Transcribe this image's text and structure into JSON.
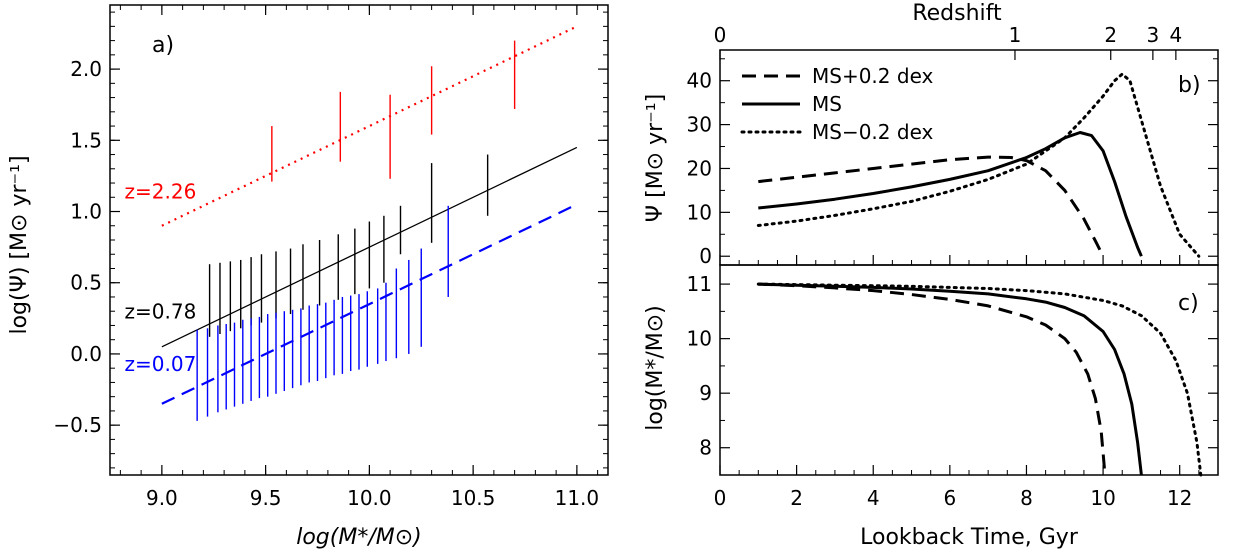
{
  "chart_data": [
    {
      "panel": "a)",
      "type": "line",
      "xlabel": "log(M*/M⊙)",
      "ylabel": "log(Ψ)  [M⊙ yr⁻¹]",
      "xlim": [
        8.75,
        11.15
      ],
      "ylim": [
        -0.85,
        2.45
      ],
      "xticks": [
        "9.0",
        "9.5",
        "10.0",
        "10.5",
        "11.0"
      ],
      "yticks": [
        "−0.5",
        "0.0",
        "0.5",
        "1.0",
        "1.5",
        "2.0"
      ],
      "grid": false,
      "series": [
        {
          "name": "z=2.26",
          "color": "#ff0000",
          "style": "dotted",
          "line": {
            "x": [
              9.0,
              11.0
            ],
            "y": [
              0.9,
              2.3
            ]
          },
          "errorbars": [
            {
              "x": 9.53,
              "lo": 1.21,
              "hi": 1.6
            },
            {
              "x": 9.86,
              "lo": 1.35,
              "hi": 1.84
            },
            {
              "x": 10.1,
              "lo": 1.23,
              "hi": 1.82
            },
            {
              "x": 10.3,
              "lo": 1.54,
              "hi": 2.02
            },
            {
              "x": 10.7,
              "lo": 1.72,
              "hi": 2.2
            }
          ]
        },
        {
          "name": "z=0.78",
          "color": "#000000",
          "style": "solid",
          "line": {
            "x": [
              9.0,
              11.0
            ],
            "y": [
              0.05,
              1.45
            ]
          },
          "errorbars": [
            {
              "x": 9.23,
              "lo": 0.12,
              "hi": 0.63
            },
            {
              "x": 9.28,
              "lo": 0.14,
              "hi": 0.64
            },
            {
              "x": 9.33,
              "lo": 0.16,
              "hi": 0.65
            },
            {
              "x": 9.38,
              "lo": 0.18,
              "hi": 0.66
            },
            {
              "x": 9.43,
              "lo": 0.2,
              "hi": 0.68
            },
            {
              "x": 9.48,
              "lo": 0.22,
              "hi": 0.7
            },
            {
              "x": 9.55,
              "lo": 0.25,
              "hi": 0.72
            },
            {
              "x": 9.62,
              "lo": 0.28,
              "hi": 0.74
            },
            {
              "x": 9.68,
              "lo": 0.31,
              "hi": 0.77
            },
            {
              "x": 9.76,
              "lo": 0.34,
              "hi": 0.8
            },
            {
              "x": 9.85,
              "lo": 0.38,
              "hi": 0.84
            },
            {
              "x": 9.93,
              "lo": 0.42,
              "hi": 0.88
            },
            {
              "x": 10.0,
              "lo": 0.46,
              "hi": 0.93
            },
            {
              "x": 10.07,
              "lo": 0.5,
              "hi": 0.97
            },
            {
              "x": 10.15,
              "lo": 0.7,
              "hi": 1.04
            },
            {
              "x": 10.3,
              "lo": 0.78,
              "hi": 1.34
            },
            {
              "x": 10.57,
              "lo": 0.97,
              "hi": 1.4
            }
          ]
        },
        {
          "name": "z=0.07",
          "color": "#0000ff",
          "style": "dashed",
          "line": {
            "x": [
              9.0,
              11.0
            ],
            "y": [
              -0.35,
              1.05
            ]
          },
          "errorbars": [
            {
              "x": 9.17,
              "lo": -0.47,
              "hi": 0.17
            },
            {
              "x": 9.22,
              "lo": -0.44,
              "hi": 0.18
            },
            {
              "x": 9.27,
              "lo": -0.41,
              "hi": 0.2
            },
            {
              "x": 9.31,
              "lo": -0.39,
              "hi": 0.21
            },
            {
              "x": 9.35,
              "lo": -0.37,
              "hi": 0.22
            },
            {
              "x": 9.39,
              "lo": -0.35,
              "hi": 0.24
            },
            {
              "x": 9.43,
              "lo": -0.33,
              "hi": 0.25
            },
            {
              "x": 9.47,
              "lo": -0.31,
              "hi": 0.26
            },
            {
              "x": 9.51,
              "lo": -0.3,
              "hi": 0.28
            },
            {
              "x": 9.55,
              "lo": -0.28,
              "hi": 0.29
            },
            {
              "x": 9.59,
              "lo": -0.26,
              "hi": 0.3
            },
            {
              "x": 9.63,
              "lo": -0.24,
              "hi": 0.31
            },
            {
              "x": 9.67,
              "lo": -0.22,
              "hi": 0.32
            },
            {
              "x": 9.71,
              "lo": -0.2,
              "hi": 0.34
            },
            {
              "x": 9.75,
              "lo": -0.19,
              "hi": 0.35
            },
            {
              "x": 9.79,
              "lo": -0.17,
              "hi": 0.36
            },
            {
              "x": 9.83,
              "lo": -0.15,
              "hi": 0.38
            },
            {
              "x": 9.87,
              "lo": -0.14,
              "hi": 0.4
            },
            {
              "x": 9.91,
              "lo": -0.12,
              "hi": 0.41
            },
            {
              "x": 9.95,
              "lo": -0.11,
              "hi": 0.42
            },
            {
              "x": 9.99,
              "lo": -0.09,
              "hi": 0.44
            },
            {
              "x": 10.04,
              "lo": -0.07,
              "hi": 0.46
            },
            {
              "x": 10.08,
              "lo": -0.05,
              "hi": 0.5
            },
            {
              "x": 10.13,
              "lo": -0.03,
              "hi": 0.6
            },
            {
              "x": 10.19,
              "lo": 0.0,
              "hi": 0.66
            },
            {
              "x": 10.25,
              "lo": 0.05,
              "hi": 0.74
            },
            {
              "x": 10.38,
              "lo": 0.4,
              "hi": 1.04
            }
          ]
        }
      ],
      "labels": [
        {
          "text": "z=2.26",
          "color": "#ff0000",
          "x": 8.82,
          "y": 1.09
        },
        {
          "text": "z=0.78",
          "color": "#000000",
          "x": 8.82,
          "y": 0.25
        },
        {
          "text": "z=0.07",
          "color": "#0000ff",
          "x": 8.82,
          "y": -0.12
        }
      ]
    },
    {
      "panel": "b)",
      "type": "line",
      "xlabel": "",
      "ylabel": "Ψ  [M⊙ yr⁻¹]",
      "top_axis_label": "Redshift",
      "top_ticks": [
        {
          "label": "0",
          "x": 0.0
        },
        {
          "label": "1",
          "x": 7.7
        },
        {
          "label": "2",
          "x": 10.2
        },
        {
          "label": "3",
          "x": 11.3
        },
        {
          "label": "4",
          "x": 11.9
        }
      ],
      "xlim": [
        0,
        13
      ],
      "ylim": [
        -2,
        47
      ],
      "xticks": [
        0,
        2,
        4,
        6,
        8,
        10,
        12
      ],
      "yticks": [
        "0",
        "10",
        "20",
        "30",
        "40"
      ],
      "legend_position": "top-left",
      "series": [
        {
          "name": "MS+0.2 dex",
          "style": "dashed",
          "x": [
            1.0,
            2.0,
            3.0,
            4.0,
            5.0,
            6.0,
            7.0,
            7.6,
            8.0,
            8.5,
            9.0,
            9.5,
            9.8,
            10.0
          ],
          "y": [
            17.0,
            18.0,
            19.0,
            20.0,
            21.0,
            22.0,
            22.6,
            22.5,
            21.8,
            19.5,
            15.0,
            8.5,
            3.5,
            0.0
          ]
        },
        {
          "name": "MS",
          "style": "solid",
          "x": [
            1.0,
            2.0,
            3.0,
            4.0,
            5.0,
            6.0,
            7.0,
            8.0,
            8.5,
            9.0,
            9.4,
            9.7,
            10.0,
            10.3,
            10.6,
            10.9,
            11.0
          ],
          "y": [
            11.0,
            11.9,
            13.0,
            14.3,
            15.8,
            17.5,
            19.5,
            22.5,
            24.5,
            27.0,
            28.2,
            27.5,
            24.0,
            17.0,
            9.0,
            2.0,
            0.0
          ]
        },
        {
          "name": "MS−0.2 dex",
          "style": "dotted",
          "x": [
            1.0,
            2.0,
            3.0,
            4.0,
            5.0,
            6.0,
            7.0,
            8.0,
            9.0,
            9.5,
            10.0,
            10.3,
            10.5,
            10.7,
            11.0,
            11.5,
            12.0,
            12.5
          ],
          "y": [
            7.0,
            8.0,
            9.3,
            10.8,
            12.5,
            14.8,
            17.5,
            21.0,
            27.0,
            31.5,
            36.5,
            40.0,
            41.5,
            40.0,
            31.0,
            16.0,
            5.0,
            0.0
          ]
        }
      ]
    },
    {
      "panel": "c)",
      "type": "line",
      "xlabel": "Lookback Time, Gyr",
      "ylabel": "log(M*/M⊙)",
      "xlim": [
        0,
        13
      ],
      "ylim": [
        7.5,
        11.35
      ],
      "xticks": [
        "0",
        "2",
        "4",
        "6",
        "8",
        "10",
        "12"
      ],
      "yticks": [
        "8",
        "9",
        "10",
        "11"
      ],
      "series": [
        {
          "name": "MS+0.2 dex",
          "style": "dashed",
          "x": [
            1.0,
            2.0,
            3.0,
            4.0,
            5.0,
            6.0,
            7.0,
            8.0,
            8.5,
            9.0,
            9.3,
            9.6,
            9.8,
            9.95,
            10.05
          ],
          "y": [
            11.0,
            10.97,
            10.93,
            10.88,
            10.81,
            10.72,
            10.6,
            10.4,
            10.25,
            10.0,
            9.75,
            9.35,
            8.9,
            8.3,
            7.5
          ]
        },
        {
          "name": "MS",
          "style": "solid",
          "x": [
            1.0,
            2.0,
            3.0,
            4.0,
            5.0,
            6.0,
            7.0,
            8.0,
            8.5,
            9.0,
            9.5,
            10.0,
            10.3,
            10.55,
            10.75,
            10.9,
            11.0
          ],
          "y": [
            11.0,
            10.98,
            10.96,
            10.94,
            10.91,
            10.87,
            10.82,
            10.73,
            10.67,
            10.57,
            10.42,
            10.13,
            9.8,
            9.35,
            8.8,
            8.1,
            7.5
          ]
        },
        {
          "name": "MS−0.2 dex",
          "style": "dotted",
          "x": [
            1.0,
            2.0,
            3.0,
            4.0,
            5.0,
            6.0,
            7.0,
            8.0,
            9.0,
            10.0,
            10.5,
            11.0,
            11.5,
            11.9,
            12.2,
            12.45,
            12.55
          ],
          "y": [
            11.0,
            10.99,
            10.98,
            10.97,
            10.96,
            10.94,
            10.92,
            10.88,
            10.82,
            10.7,
            10.6,
            10.42,
            10.1,
            9.6,
            9.0,
            8.1,
            7.5
          ]
        }
      ]
    }
  ]
}
